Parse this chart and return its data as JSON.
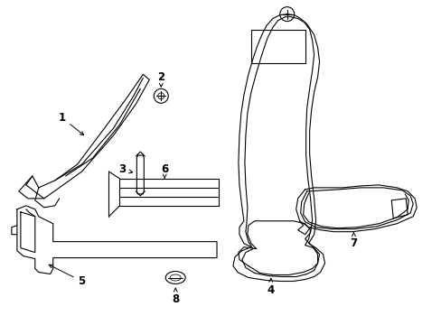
{
  "background_color": "#ffffff",
  "line_color": "#000000",
  "label_color": "#000000",
  "figsize": [
    4.89,
    3.6
  ],
  "dpi": 100,
  "font_size": 8.5,
  "line_width": 0.8
}
